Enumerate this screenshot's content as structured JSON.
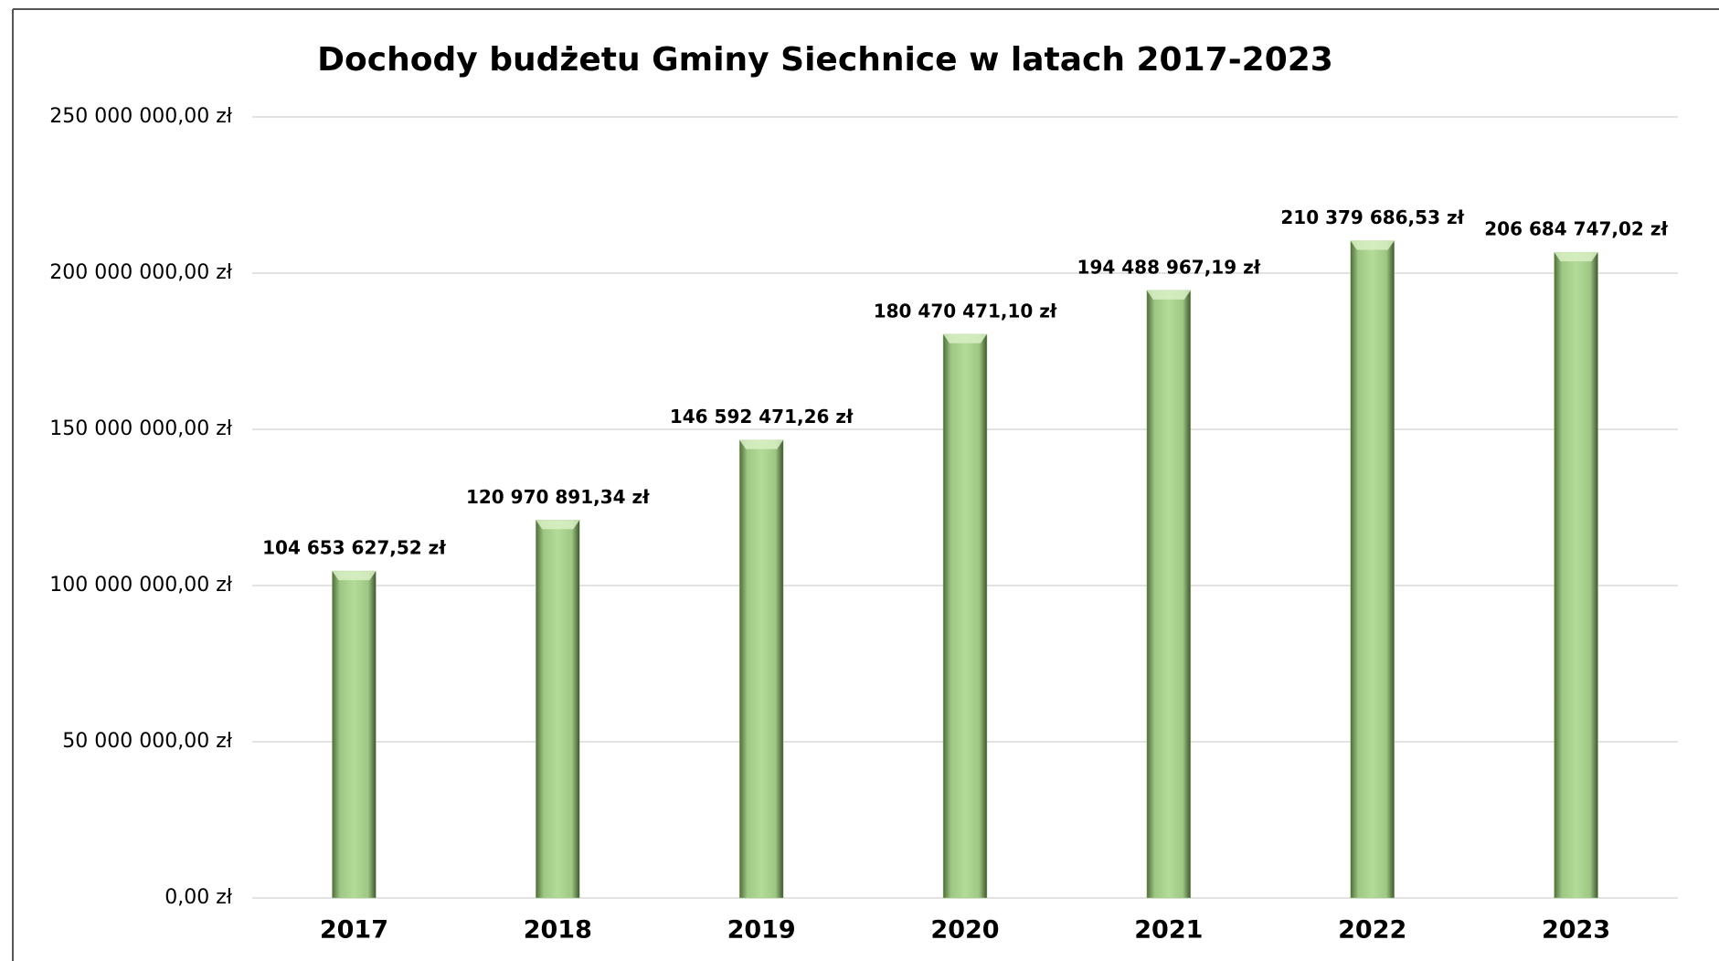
{
  "chart_data": {
    "type": "bar",
    "title": "Dochody budżetu Gminy Siechnice w latach 2017-2023",
    "categories": [
      "2017",
      "2018",
      "2019",
      "2020",
      "2021",
      "2022",
      "2023"
    ],
    "values": [
      104653627.52,
      120970891.34,
      146592471.26,
      180470471.1,
      194488967.19,
      210379686.53,
      206684747.02
    ],
    "value_labels": [
      "104 653 627,52 zł",
      "120 970 891,34 zł",
      "146 592 471,26 zł",
      "180 470 471,10 zł",
      "194 488 967,19 zł",
      "210 379 686,53 zł",
      "206 684 747,02 zł"
    ],
    "color": "#a9d18e",
    "ylim": [
      0,
      250000000
    ],
    "yticks": [
      {
        "value": 0,
        "label": "0,00 zł"
      },
      {
        "value": 50000000,
        "label": "50 000 000,00 zł"
      },
      {
        "value": 100000000,
        "label": "100 000 000,00 zł"
      },
      {
        "value": 150000000,
        "label": "150 000 000,00 zł"
      },
      {
        "value": 200000000,
        "label": "200 000 000,00 zł"
      },
      {
        "value": 250000000,
        "label": "250 000 000,00 zł"
      }
    ],
    "grid": true
  }
}
